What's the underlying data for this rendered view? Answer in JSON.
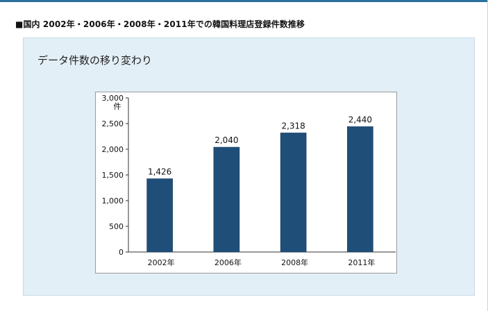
{
  "header": {
    "section_title": "■国内 2002年・2006年・2008年・2011年での韓国料理店登録件数推移"
  },
  "panel": {
    "title": "データ件数の移り変わり"
  },
  "colors": {
    "bar": "#1f4e79",
    "accent_rule": "#2a6f9e",
    "panel_bg": "#e3eff7"
  },
  "chart_data": {
    "type": "bar",
    "title": "",
    "xlabel": "",
    "ylabel": "件",
    "categories": [
      "2002年",
      "2006年",
      "2008年",
      "2011年"
    ],
    "values": [
      1426,
      2040,
      2318,
      2440
    ],
    "value_labels": [
      "1,426",
      "2,040",
      "2,318",
      "2,440"
    ],
    "yticks": [
      0,
      500,
      1000,
      1500,
      2000,
      2500,
      3000
    ],
    "ytick_labels": [
      "0",
      "500",
      "1,000",
      "1,500",
      "2,000",
      "2,500",
      "3,000"
    ],
    "ylim": [
      0,
      3000
    ],
    "grid": false,
    "legend": "none"
  }
}
